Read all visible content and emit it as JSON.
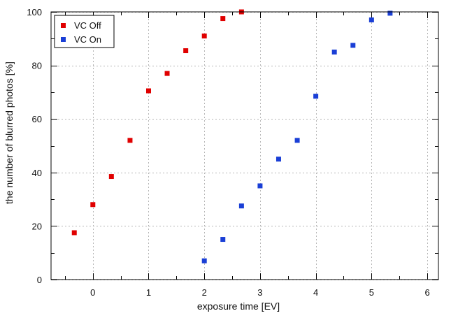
{
  "chart_data": {
    "type": "scatter",
    "title": "",
    "xlabel": "exposure time [EV]",
    "ylabel": "the number of blurred photos [%]",
    "xlim": [
      -0.75,
      6.2
    ],
    "ylim": [
      0,
      100
    ],
    "xticks": [
      0,
      1,
      2,
      3,
      4,
      5,
      6
    ],
    "yticks": [
      0,
      20,
      40,
      60,
      80,
      100
    ],
    "xminor": [
      -0.5,
      0.5,
      1.5,
      2.5,
      3.5,
      4.5,
      5.5
    ],
    "yminor": [
      10,
      30,
      50,
      70,
      90
    ],
    "grid": true,
    "legend_position": "top-left",
    "series": [
      {
        "name": "VC Off",
        "color": "#e00000",
        "x": [
          -0.333,
          0,
          0.333,
          0.667,
          1,
          1.333,
          1.667,
          2,
          2.333,
          2.667
        ],
        "y": [
          17.5,
          28,
          38.5,
          52,
          70.5,
          77,
          85.5,
          91,
          97.5,
          100
        ]
      },
      {
        "name": "VC On",
        "color": "#1a3fd6",
        "x": [
          2,
          2.333,
          2.667,
          3,
          3.333,
          3.667,
          4,
          4.333,
          4.667,
          5,
          5.333
        ],
        "y": [
          7,
          15,
          27.5,
          35,
          45,
          52,
          68.5,
          85,
          87.5,
          97,
          99.5
        ]
      }
    ]
  }
}
